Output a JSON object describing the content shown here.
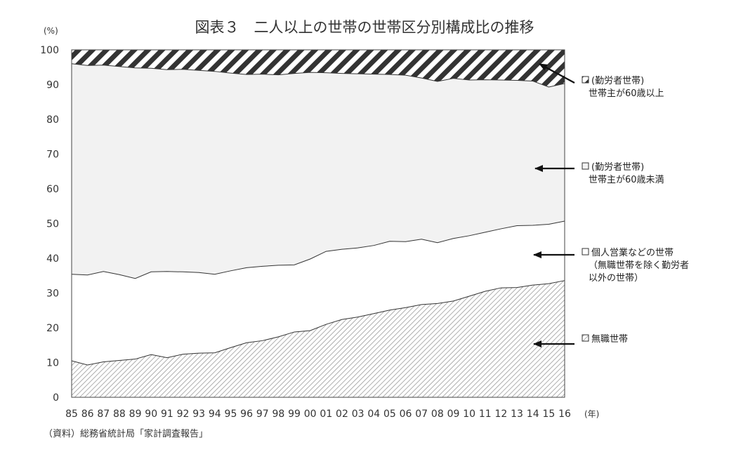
{
  "chart_data": {
    "type": "area",
    "stacked": true,
    "title": "図表３　二人以上の世帯の世帯区分別構成比の推移",
    "y_unit": "(%)",
    "x_unit": "(年)",
    "ylim": [
      0,
      100
    ],
    "yticks": [
      "0",
      "10",
      "20",
      "30",
      "40",
      "50",
      "60",
      "70",
      "80",
      "90",
      "100"
    ],
    "categories": [
      "85",
      "86",
      "87",
      "88",
      "89",
      "90",
      "91",
      "92",
      "93",
      "94",
      "95",
      "96",
      "97",
      "98",
      "99",
      "00",
      "01",
      "02",
      "03",
      "04",
      "05",
      "06",
      "07",
      "08",
      "09",
      "10",
      "11",
      "12",
      "13",
      "14",
      "15",
      "16"
    ],
    "grid": false,
    "legend_placement": "right",
    "series": [
      {
        "label_lines": [
          "無職世帯"
        ],
        "pattern": "fine-diagonal-hatch",
        "values": [
          10.5,
          9.3,
          10.2,
          10.6,
          11.0,
          12.3,
          11.4,
          12.4,
          12.7,
          12.8,
          14.3,
          15.7,
          16.3,
          17.4,
          18.8,
          19.2,
          21.0,
          22.4,
          23.1,
          24.1,
          25.1,
          25.8,
          26.7,
          27.0,
          27.7,
          29.1,
          30.5,
          31.5,
          31.6,
          32.3,
          32.7,
          33.6
        ]
      },
      {
        "label_lines": [
          "個人営業などの世帯",
          "（無職世帯を除く勤労者",
          "以外の世帯）"
        ],
        "pattern": "none",
        "values": [
          24.9,
          25.9,
          26.0,
          24.7,
          23.2,
          23.8,
          24.8,
          23.7,
          23.2,
          22.6,
          22.1,
          21.6,
          21.4,
          20.6,
          19.3,
          20.6,
          21.0,
          20.2,
          19.9,
          19.6,
          19.8,
          19.0,
          18.8,
          17.5,
          18.0,
          17.4,
          17.0,
          17.0,
          17.8,
          17.2,
          17.1,
          17.1
        ]
      },
      {
        "label_lines": [
          "(勤労者世帯)",
          "世帯主が60歳未満"
        ],
        "pattern": "solid-light-gray",
        "values": [
          60.6,
          60.3,
          59.4,
          59.9,
          60.6,
          58.6,
          58.1,
          58.3,
          58.2,
          58.4,
          56.9,
          55.6,
          55.3,
          54.8,
          55.1,
          53.7,
          51.4,
          50.6,
          50.1,
          49.3,
          48.0,
          47.9,
          46.4,
          46.4,
          46.1,
          44.8,
          43.9,
          42.8,
          41.8,
          41.5,
          39.5,
          39.6
        ]
      },
      {
        "label_lines": [
          "(勤労者世帯)",
          "世帯主が60歳以上"
        ],
        "pattern": "bold-diagonal-stripes",
        "values": [
          4.0,
          4.5,
          4.4,
          4.8,
          5.2,
          5.3,
          5.7,
          5.6,
          5.9,
          6.2,
          6.7,
          7.1,
          7.0,
          7.2,
          6.8,
          6.5,
          6.6,
          6.8,
          6.9,
          7.0,
          7.1,
          7.3,
          8.1,
          9.1,
          8.2,
          8.7,
          8.6,
          8.7,
          8.8,
          9.0,
          10.7,
          9.7
        ]
      }
    ]
  },
  "source_note": "（資料）総務省統計局「家計調査報告」"
}
